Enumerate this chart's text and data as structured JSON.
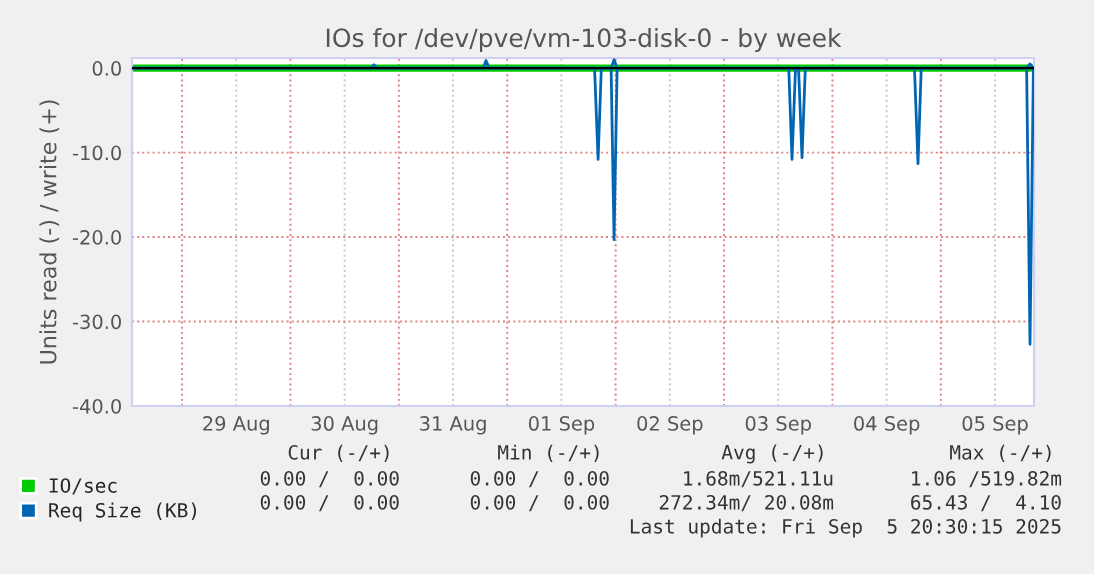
{
  "chart_data": {
    "type": "line",
    "title": "IOs for /dev/pve/vm-103-disk-0 - by week",
    "ylabel": "Units read (-) / write (+)",
    "series": [
      {
        "name": "IO/sec",
        "color": "#00cc00",
        "x": [
          "2025-08-28T12:55",
          "2025-09-05T20:30"
        ],
        "values": [
          0,
          0
        ]
      },
      {
        "name": "Req Size (KB)",
        "color": "#0066b3",
        "x": [
          "2025-08-28T12:55",
          "2025-09-01T19:20",
          "2025-09-01T20:07",
          "2025-09-01T20:50",
          "2025-09-01T23:00",
          "2025-09-01T23:39",
          "2025-09-02T00:20",
          "2025-09-03T14:20",
          "2025-09-03T15:03",
          "2025-09-03T15:50",
          "2025-09-03T16:30",
          "2025-09-03T17:16",
          "2025-09-03T18:00",
          "2025-09-04T18:10",
          "2025-09-04T18:57",
          "2025-09-04T19:40",
          "2025-09-05T19:00",
          "2025-09-05T19:45",
          "2025-09-05T20:30"
        ],
        "values": [
          0,
          0,
          -10.8,
          0,
          0,
          -20.3,
          0,
          0,
          -10.8,
          0,
          0,
          -10.6,
          0,
          0,
          -11.3,
          0,
          0,
          -32.7,
          0
        ]
      },
      {
        "color": "#0066b3",
        "x": [
          "2025-08-28T12:55",
          "2025-08-30T17:50",
          "2025-08-30T18:30",
          "2025-08-30T19:10",
          "2025-08-31T18:40",
          "2025-08-31T19:18",
          "2025-08-31T20:00",
          "2025-09-01T23:00",
          "2025-09-01T23:39",
          "2025-09-02T00:20",
          "2025-09-05T19:00",
          "2025-09-05T19:45",
          "2025-09-05T20:30"
        ],
        "values": [
          0,
          0,
          0.4,
          0,
          0,
          0.9,
          0,
          0,
          1.0,
          0,
          0,
          0.5,
          0
        ]
      }
    ],
    "xlim": [
      "2025-08-28T12:55",
      "2025-09-05T20:38"
    ],
    "xticks": [
      {
        "value": "2025-08-29",
        "label": null
      },
      {
        "value": "2025-08-29T12:00",
        "label": "29 Aug"
      },
      {
        "value": "2025-08-30",
        "label": null
      },
      {
        "value": "2025-08-30T12:00",
        "label": "30 Aug"
      },
      {
        "value": "2025-08-31",
        "label": null
      },
      {
        "value": "2025-08-31T12:00",
        "label": "31 Aug"
      },
      {
        "value": "2025-09-01",
        "label": null
      },
      {
        "value": "2025-09-01T12:00",
        "label": "01 Sep"
      },
      {
        "value": "2025-09-02",
        "label": null
      },
      {
        "value": "2025-09-02T12:00",
        "label": "02 Sep"
      },
      {
        "value": "2025-09-03",
        "label": null
      },
      {
        "value": "2025-09-03T12:00",
        "label": "03 Sep"
      },
      {
        "value": "2025-09-04",
        "label": null
      },
      {
        "value": "2025-09-04T12:00",
        "label": "04 Sep"
      },
      {
        "value": "2025-09-05",
        "label": null
      },
      {
        "value": "2025-09-05T12:00",
        "label": "05 Sep"
      }
    ],
    "ylim": [
      -40,
      1.2
    ],
    "yticks": [
      {
        "value": -40,
        "label": "-40.0"
      },
      {
        "value": -30,
        "label": "-30.0"
      },
      {
        "value": -20,
        "label": "-20.0"
      },
      {
        "value": -10,
        "label": "-10.0"
      },
      {
        "value": 0,
        "label": "0.0"
      }
    ],
    "ref_lines": [
      {
        "axis": "y",
        "value": 0,
        "color": "#000000"
      }
    ],
    "grid": true,
    "legend": "bottom left",
    "annotations": [
      "Cur (-/+)",
      "Min (-/+)",
      "Avg (-/+)",
      "Max (-/+)",
      "0.00 /  0.00",
      "0.00 /  0.00",
      "1.68m/521.11u",
      "1.06 /519.82m",
      "0.00 /  0.00",
      "0.00 /  0.00",
      "272.34m/ 20.08m",
      "65.43 /  4.10",
      "Last update: Fri Sep  5 20:30:15 2025"
    ]
  }
}
